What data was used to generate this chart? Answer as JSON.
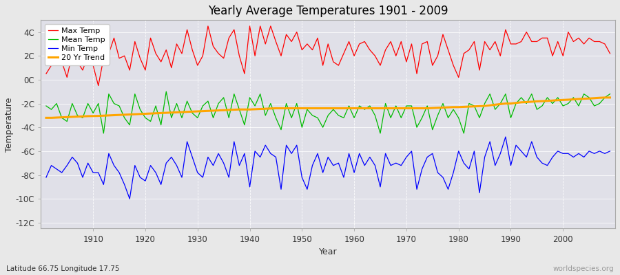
{
  "title": "Yearly Average Temperatures 1901 - 2009",
  "xlabel": "Year",
  "ylabel": "Temperature",
  "lat_lon_label": "Latitude 66.75 Longitude 17.75",
  "watermark": "worldspecies.org",
  "year_start": 1901,
  "year_end": 2009,
  "ylim": [
    -12.5,
    5.0
  ],
  "yticks": [
    -12,
    -10,
    -8,
    -6,
    -4,
    -2,
    0,
    2,
    4
  ],
  "ytick_labels": [
    "-12C",
    "-10C",
    "-8C",
    "-6C",
    "-4C",
    "-2C",
    "0C",
    "2C",
    "4C"
  ],
  "xticks": [
    1910,
    1920,
    1930,
    1940,
    1950,
    1960,
    1970,
    1980,
    1990,
    2000
  ],
  "xlim": [
    1900,
    2010
  ],
  "colors": {
    "max_temp": "#ff0000",
    "mean_temp": "#00bb00",
    "min_temp": "#0000ff",
    "trend": "#ffa500",
    "fig_bg": "#e8e8e8",
    "plot_bg": "#e0e0e8",
    "grid": "#ffffff"
  },
  "max_temp": [
    0.5,
    1.2,
    2.5,
    1.5,
    0.2,
    2.2,
    1.5,
    0.8,
    2.0,
    1.2,
    -0.5,
    1.8,
    2.2,
    3.5,
    1.8,
    2.0,
    0.8,
    3.2,
    1.8,
    0.8,
    3.5,
    2.2,
    1.5,
    2.5,
    1.0,
    3.0,
    2.2,
    4.2,
    2.5,
    1.2,
    2.0,
    4.5,
    2.8,
    2.2,
    1.8,
    3.5,
    4.2,
    2.0,
    0.5,
    4.5,
    2.0,
    4.5,
    3.0,
    4.5,
    3.2,
    2.0,
    3.8,
    3.2,
    4.0,
    2.5,
    3.0,
    2.5,
    3.5,
    1.2,
    3.0,
    1.5,
    1.2,
    2.2,
    3.2,
    2.0,
    3.0,
    3.2,
    2.5,
    2.0,
    1.2,
    2.5,
    3.2,
    2.0,
    3.2,
    1.5,
    3.0,
    0.5,
    3.0,
    3.2,
    1.2,
    2.0,
    3.8,
    2.5,
    1.2,
    0.2,
    2.2,
    2.5,
    3.2,
    0.8,
    3.2,
    2.5,
    3.2,
    2.0,
    4.2,
    3.0,
    3.0,
    3.2,
    4.0,
    3.2,
    3.2,
    3.5,
    3.5,
    2.0,
    3.2,
    2.0,
    4.0,
    3.2,
    3.5,
    3.0,
    3.5,
    3.2,
    3.2,
    3.0,
    2.2
  ],
  "mean_temp": [
    -2.2,
    -2.5,
    -2.0,
    -3.2,
    -3.5,
    -2.0,
    -3.0,
    -3.2,
    -2.0,
    -2.8,
    -2.0,
    -4.5,
    -1.2,
    -2.0,
    -2.2,
    -3.2,
    -3.8,
    -1.2,
    -2.5,
    -3.2,
    -3.5,
    -2.2,
    -3.8,
    -1.0,
    -3.2,
    -2.0,
    -3.2,
    -1.8,
    -2.8,
    -3.2,
    -2.2,
    -1.8,
    -3.2,
    -2.0,
    -1.5,
    -3.2,
    -1.2,
    -2.5,
    -3.8,
    -1.5,
    -2.2,
    -1.2,
    -3.0,
    -2.0,
    -3.2,
    -4.2,
    -2.0,
    -3.2,
    -2.0,
    -4.0,
    -2.5,
    -3.0,
    -3.2,
    -4.0,
    -3.0,
    -2.5,
    -3.0,
    -3.2,
    -2.2,
    -3.2,
    -2.2,
    -2.5,
    -2.2,
    -3.0,
    -4.5,
    -2.0,
    -3.2,
    -2.2,
    -3.2,
    -2.2,
    -2.2,
    -4.0,
    -3.2,
    -2.2,
    -4.2,
    -3.0,
    -2.0,
    -3.2,
    -2.5,
    -3.2,
    -4.5,
    -2.0,
    -2.2,
    -3.2,
    -2.0,
    -1.2,
    -2.5,
    -2.0,
    -1.2,
    -3.2,
    -2.0,
    -1.5,
    -2.0,
    -1.2,
    -2.5,
    -2.2,
    -1.5,
    -2.0,
    -1.5,
    -2.2,
    -2.0,
    -1.5,
    -2.2,
    -1.2,
    -1.5,
    -2.2,
    -2.0,
    -1.5,
    -1.2
  ],
  "min_temp": [
    -8.2,
    -7.2,
    -7.5,
    -7.8,
    -7.2,
    -6.5,
    -7.0,
    -8.2,
    -7.0,
    -7.8,
    -7.8,
    -8.8,
    -6.2,
    -7.2,
    -7.8,
    -8.8,
    -10.0,
    -7.2,
    -8.2,
    -8.5,
    -7.2,
    -7.8,
    -8.8,
    -7.0,
    -6.5,
    -7.2,
    -8.2,
    -5.2,
    -6.5,
    -7.8,
    -8.2,
    -6.5,
    -7.2,
    -6.2,
    -7.0,
    -8.2,
    -5.2,
    -7.2,
    -6.2,
    -9.0,
    -6.0,
    -6.5,
    -5.5,
    -6.2,
    -6.5,
    -9.2,
    -5.5,
    -6.2,
    -5.5,
    -8.2,
    -9.2,
    -7.2,
    -6.2,
    -7.8,
    -6.5,
    -7.2,
    -7.0,
    -8.2,
    -6.2,
    -7.8,
    -6.2,
    -7.2,
    -6.5,
    -7.2,
    -9.0,
    -6.2,
    -7.2,
    -7.0,
    -7.2,
    -6.5,
    -6.0,
    -9.2,
    -7.5,
    -6.5,
    -6.2,
    -7.8,
    -8.2,
    -9.2,
    -7.8,
    -6.0,
    -7.0,
    -7.5,
    -6.0,
    -9.5,
    -6.5,
    -5.2,
    -7.2,
    -6.2,
    -4.8,
    -7.2,
    -5.5,
    -6.0,
    -6.5,
    -5.2,
    -6.5,
    -7.0,
    -7.2,
    -6.5,
    -6.0,
    -6.2,
    -6.2,
    -6.5,
    -6.2,
    -6.5,
    -6.0,
    -6.2,
    -6.0,
    -6.2,
    -6.0
  ],
  "trend": [
    -3.2,
    -3.2,
    -3.18,
    -3.16,
    -3.14,
    -3.12,
    -3.1,
    -3.08,
    -3.06,
    -3.05,
    -3.04,
    -3.02,
    -3.0,
    -2.98,
    -2.96,
    -2.94,
    -2.92,
    -2.9,
    -2.88,
    -2.86,
    -2.84,
    -2.82,
    -2.8,
    -2.78,
    -2.76,
    -2.74,
    -2.72,
    -2.7,
    -2.68,
    -2.66,
    -2.64,
    -2.62,
    -2.6,
    -2.58,
    -2.56,
    -2.54,
    -2.52,
    -2.5,
    -2.5,
    -2.5,
    -2.48,
    -2.46,
    -2.44,
    -2.42,
    -2.4,
    -2.4,
    -2.4,
    -2.4,
    -2.4,
    -2.4,
    -2.4,
    -2.4,
    -2.4,
    -2.4,
    -2.4,
    -2.4,
    -2.4,
    -2.4,
    -2.4,
    -2.4,
    -2.4,
    -2.4,
    -2.4,
    -2.4,
    -2.4,
    -2.4,
    -2.4,
    -2.4,
    -2.4,
    -2.4,
    -2.4,
    -2.4,
    -2.4,
    -2.4,
    -2.38,
    -2.36,
    -2.34,
    -2.32,
    -2.3,
    -2.3,
    -2.28,
    -2.26,
    -2.24,
    -2.22,
    -2.2,
    -2.15,
    -2.1,
    -2.05,
    -2.0,
    -2.0,
    -1.95,
    -1.9,
    -1.88,
    -1.85,
    -1.82,
    -1.8,
    -1.78,
    -1.75,
    -1.72,
    -1.7,
    -1.68,
    -1.65,
    -1.62,
    -1.6,
    -1.58,
    -1.55,
    -1.52,
    -1.5,
    -1.5
  ]
}
